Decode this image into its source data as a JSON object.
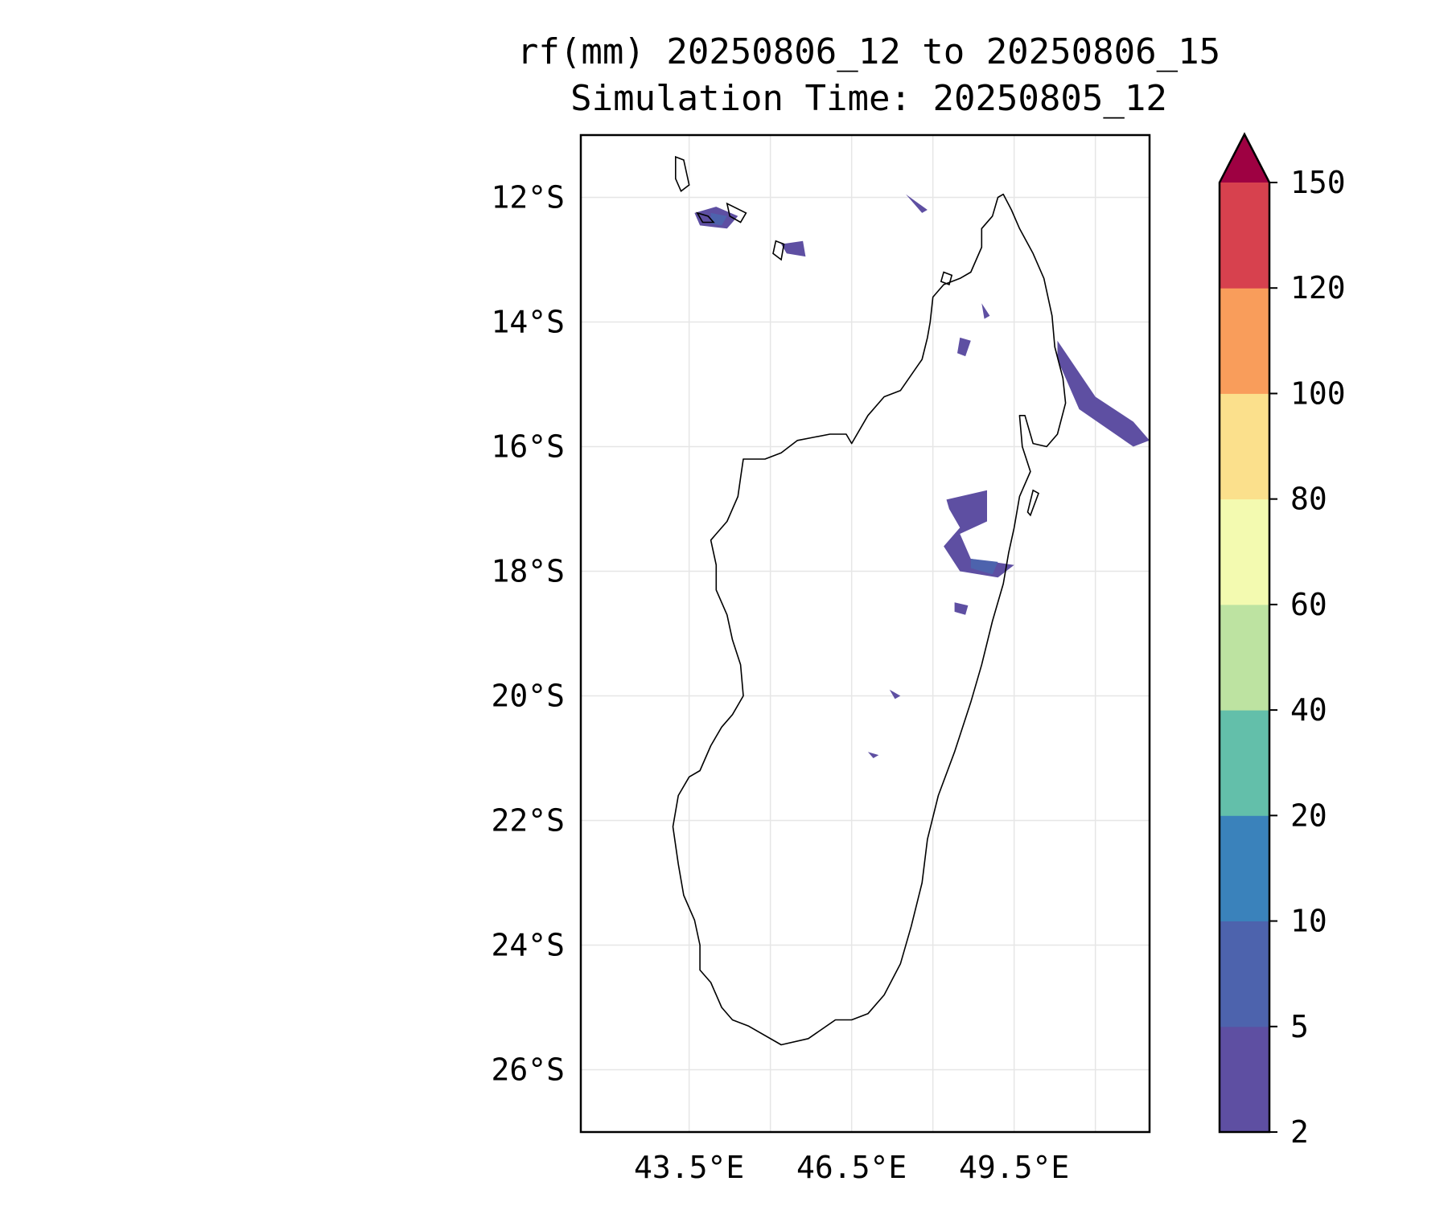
{
  "title": {
    "line1": "rf(mm) 20250806_12 to 20250806_15",
    "line2": "Simulation Time: 20250805_12"
  },
  "map": {
    "projection": "PlateCarree",
    "lon_range": [
      41.5,
      52.0
    ],
    "lat_range": [
      -27.0,
      -11.0
    ],
    "grid": true,
    "coastline": "Madagascar and Comoros",
    "lat_ticks": [
      "12°S",
      "14°S",
      "16°S",
      "18°S",
      "20°S",
      "22°S",
      "24°S",
      "26°S"
    ],
    "lon_ticks": [
      "43.5°E",
      "46.5°E",
      "49.5°E"
    ],
    "lat_values": [
      -12,
      -14,
      -16,
      -18,
      -20,
      -22,
      -24,
      -26
    ],
    "lon_values": [
      43.5,
      46.5,
      49.5
    ],
    "grid_lon_values": [
      43.5,
      45.0,
      46.5,
      48.0,
      49.5,
      51.0
    ]
  },
  "colorbar": {
    "extend": "max",
    "tick_labels": [
      "2",
      "5",
      "10",
      "20",
      "40",
      "60",
      "80",
      "100",
      "120",
      "150"
    ],
    "colors": [
      "#5e4fa2",
      "#4d63ad",
      "#3a82bb",
      "#63bfaa",
      "#bde3a1",
      "#f3fab0",
      "#fbe08c",
      "#f99d5b",
      "#d7414e",
      "#9e0142"
    ]
  },
  "rainfall_areas": [
    {
      "name": "northeast-coast-band",
      "lon": [
        50.3,
        51.0,
        51.7,
        52.0,
        51.7,
        50.7,
        50.3
      ],
      "lat": [
        -14.3,
        -15.2,
        -15.6,
        -15.9,
        -16.0,
        -15.4,
        -14.6
      ],
      "level": "2-5"
    },
    {
      "name": "toamasina-cluster",
      "lon": [
        48.25,
        49.0,
        49.0,
        48.5,
        48.7,
        49.5,
        49.2,
        48.5,
        48.2,
        48.5,
        48.3
      ],
      "lat": [
        -16.85,
        -16.7,
        -17.2,
        -17.4,
        -17.8,
        -17.9,
        -18.1,
        -18.0,
        -17.6,
        -17.3,
        -17.0
      ],
      "level": "2-5"
    },
    {
      "name": "toamasina-core",
      "lon": [
        48.7,
        49.2,
        49.1,
        48.7
      ],
      "lat": [
        -17.8,
        -17.85,
        -18.05,
        -17.95
      ],
      "level": "5-10"
    },
    {
      "name": "comoros-grande",
      "lon": [
        43.6,
        44.0,
        44.4,
        44.2,
        43.7
      ],
      "lat": [
        -12.25,
        -12.15,
        -12.3,
        -12.5,
        -12.45
      ],
      "level": "2-5"
    },
    {
      "name": "comoros-grande-core",
      "lon": [
        43.9,
        44.2,
        44.1,
        43.9
      ],
      "lat": [
        -12.25,
        -12.3,
        -12.45,
        -12.42
      ],
      "level": "5-10"
    },
    {
      "name": "mayotte",
      "lon": [
        45.2,
        45.6,
        45.65,
        45.3
      ],
      "lat": [
        -12.75,
        -12.7,
        -12.95,
        -12.9
      ],
      "level": "2-5"
    },
    {
      "name": "north-offshore-1",
      "lon": [
        47.5,
        47.9,
        47.8
      ],
      "lat": [
        -11.95,
        -12.2,
        -12.25
      ],
      "level": "2-5"
    },
    {
      "name": "north-offshore-2",
      "lon": [
        48.9,
        49.05,
        48.95
      ],
      "lat": [
        -13.7,
        -13.9,
        -13.95
      ],
      "level": "2-5"
    },
    {
      "name": "north-offshore-3",
      "lon": [
        48.5,
        48.7,
        48.6,
        48.45
      ],
      "lat": [
        -14.25,
        -14.3,
        -14.55,
        -14.5
      ],
      "level": "2-5"
    },
    {
      "name": "central-patch",
      "lon": [
        48.4,
        48.65,
        48.6,
        48.4
      ],
      "lat": [
        -18.5,
        -18.55,
        -18.7,
        -18.65
      ],
      "level": "2-5"
    },
    {
      "name": "inland-patch-1",
      "lon": [
        47.2,
        47.4,
        47.3
      ],
      "lat": [
        -19.9,
        -20.0,
        -20.05
      ],
      "level": "2-5"
    },
    {
      "name": "inland-patch-2",
      "lon": [
        46.8,
        47.0,
        46.9
      ],
      "lat": [
        -20.9,
        -20.95,
        -21.0
      ],
      "level": "2-5"
    }
  ]
}
